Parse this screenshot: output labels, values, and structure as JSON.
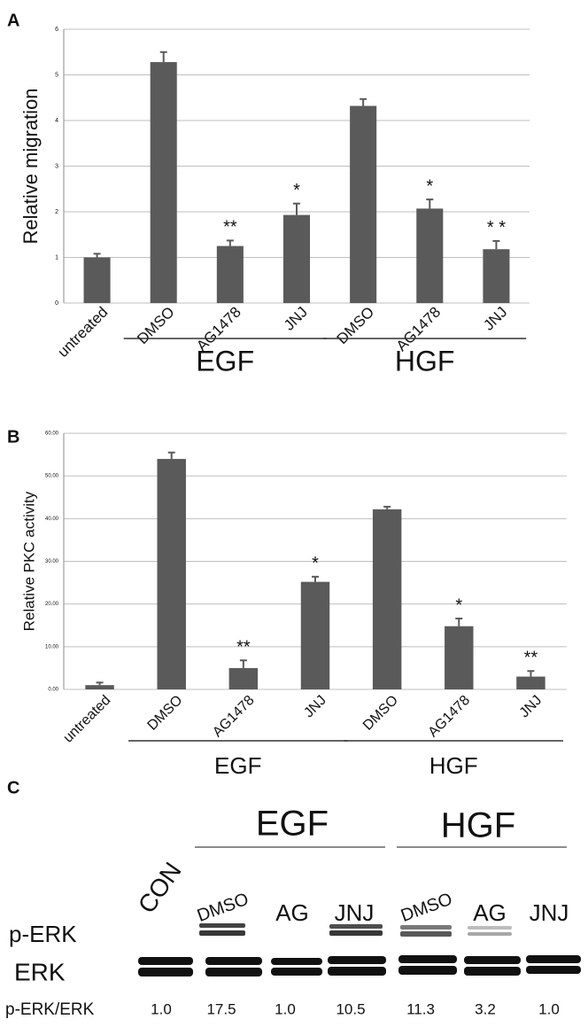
{
  "chart_data": [
    {
      "type": "bar",
      "panel": "A",
      "ylabel": "Relative migration",
      "categories": [
        "untreated",
        "DMSO",
        "AG1478",
        "JNJ",
        "DMSO",
        "AG1478",
        "JNJ"
      ],
      "values": [
        1.0,
        5.28,
        1.25,
        1.93,
        4.32,
        2.07,
        1.18
      ],
      "errors": [
        0.08,
        0.22,
        0.12,
        0.25,
        0.15,
        0.2,
        0.18
      ],
      "annotations": [
        null,
        null,
        "**",
        "*",
        null,
        "*",
        "* *"
      ],
      "groups": [
        {
          "label": "EGF",
          "members": [
            1,
            2,
            3
          ]
        },
        {
          "label": "HGF",
          "members": [
            4,
            5,
            6
          ]
        }
      ],
      "color": "#5a5a5a",
      "ylim": [
        0,
        6
      ],
      "yticks": [
        0,
        1,
        2,
        3,
        4,
        5,
        6
      ],
      "grid": true
    },
    {
      "type": "bar",
      "panel": "B",
      "ylabel": "Relative PKC activity",
      "categories": [
        "untreated",
        "DMSO",
        "AG1478",
        "JNJ",
        "DMSO",
        "AG1478",
        "JNJ"
      ],
      "values": [
        1.0,
        54.0,
        5.0,
        25.2,
        42.2,
        14.8,
        3.0
      ],
      "errors": [
        0.6,
        1.5,
        1.8,
        1.2,
        0.6,
        1.8,
        1.3
      ],
      "annotations": [
        null,
        null,
        "**",
        "*",
        null,
        "*",
        "**"
      ],
      "groups": [
        {
          "label": "EGF",
          "members": [
            1,
            2,
            3
          ]
        },
        {
          "label": "HGF",
          "members": [
            4,
            5,
            6
          ]
        }
      ],
      "color": "#5a5a5a",
      "ylim": [
        0,
        60
      ],
      "yticks": [
        {
          "value": 0,
          "label": "0.00"
        },
        {
          "value": 10,
          "label": "10.00"
        },
        {
          "value": 20,
          "label": "20.00"
        },
        {
          "value": 30,
          "label": "30.00"
        },
        {
          "value": 40,
          "label": "40.00"
        },
        {
          "value": 50,
          "label": "50.00"
        },
        {
          "value": 60,
          "label": "60.00"
        }
      ],
      "grid": true
    }
  ],
  "blot": {
    "panel": "C",
    "groups": [
      "EGF",
      "HGF"
    ],
    "control": "CON",
    "lanes": [
      "DMSO",
      "AG",
      "JNJ",
      "DMSO",
      "AG",
      "JNJ"
    ],
    "rows": [
      "p-ERK",
      "ERK"
    ],
    "ratio_label": "p-ERK/ERK",
    "ratios": [
      "1.0",
      "17.5",
      "1.0",
      "10.5",
      "11.3",
      "3.2",
      "1.0"
    ]
  }
}
